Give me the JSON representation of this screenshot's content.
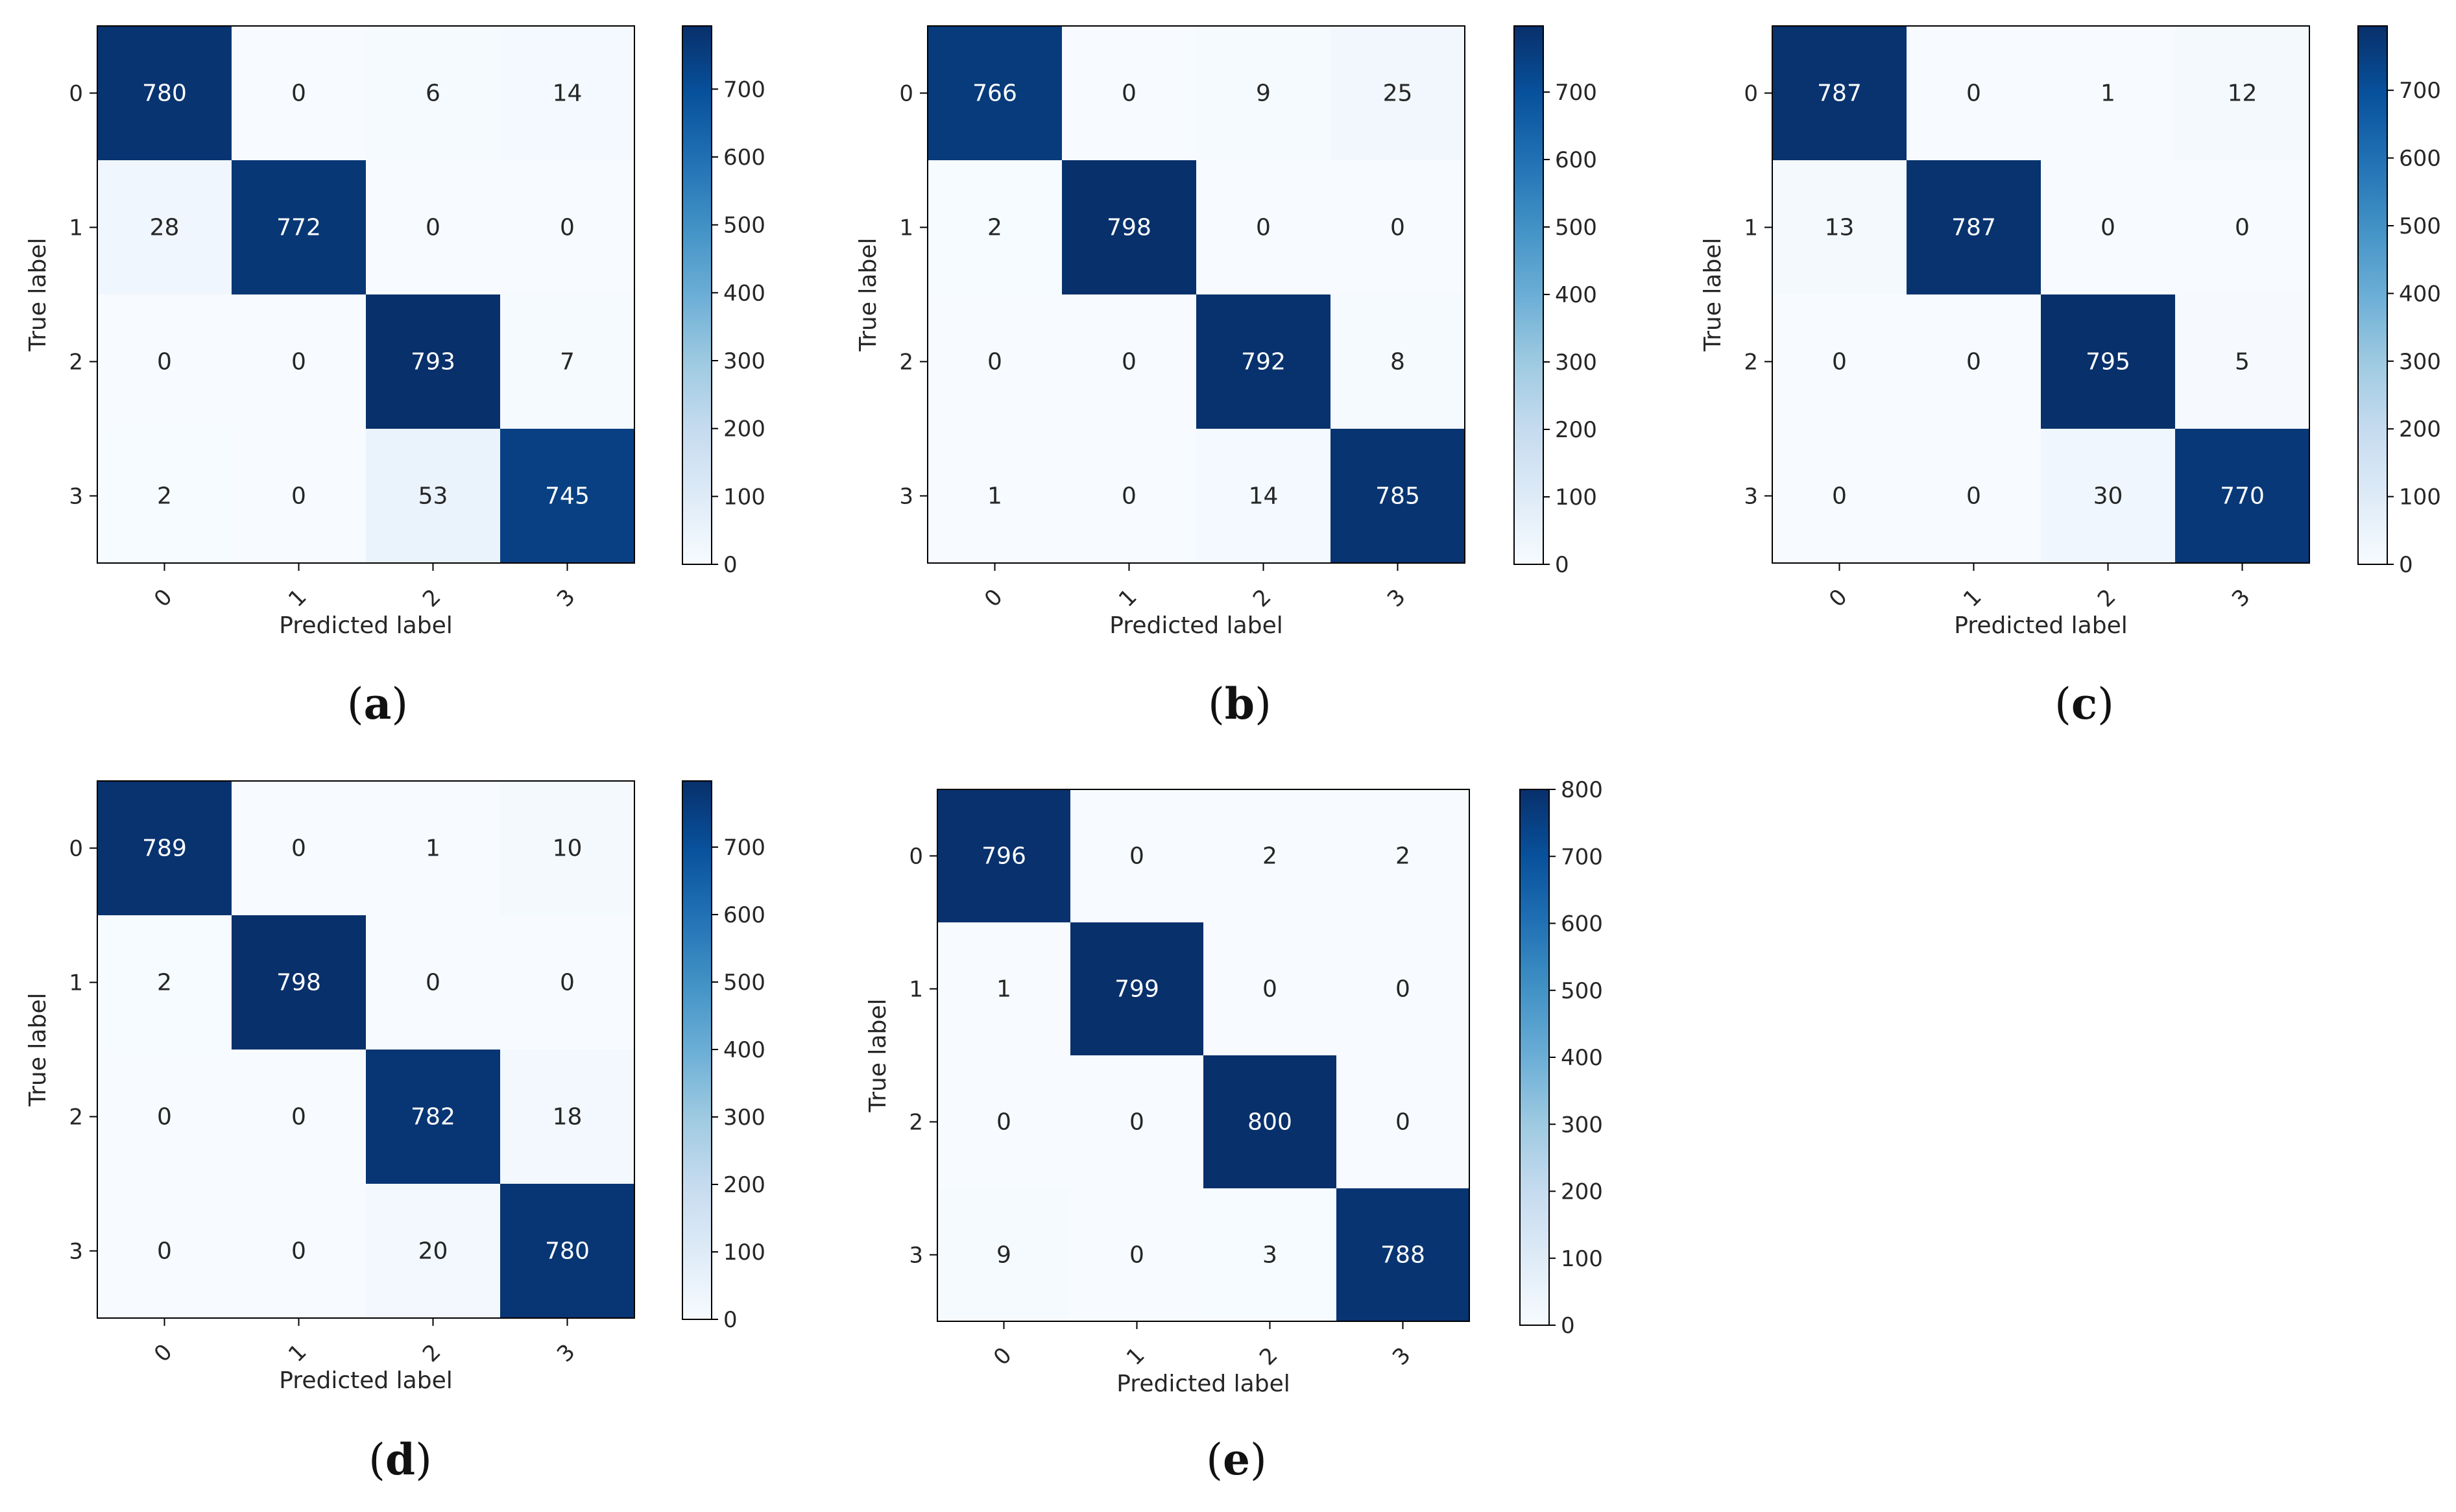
{
  "colors": {
    "cmap": [
      "#f7fbff",
      "#deebf7",
      "#c6dbef",
      "#9ecae1",
      "#6baed6",
      "#4292c6",
      "#2171b5",
      "#08519c",
      "#08306b"
    ],
    "text_light": "#ffffff",
    "text_dark": "#262626"
  },
  "chart_data": [
    {
      "type": "heatmap",
      "caption": "a",
      "title": "",
      "xlabel": "Predicted label",
      "ylabel": "True label",
      "categories": [
        "0",
        "1",
        "2",
        "3"
      ],
      "matrix": [
        [
          780,
          0,
          6,
          14
        ],
        [
          28,
          772,
          0,
          0
        ],
        [
          0,
          0,
          793,
          7
        ],
        [
          2,
          0,
          53,
          745
        ]
      ],
      "colorbar": {
        "vmin": 0,
        "vmax": 793,
        "ticks": [
          "0",
          "100",
          "200",
          "300",
          "400",
          "500",
          "600",
          "700"
        ]
      }
    },
    {
      "type": "heatmap",
      "caption": "b",
      "title": "",
      "xlabel": "Predicted label",
      "ylabel": "True label",
      "categories": [
        "0",
        "1",
        "2",
        "3"
      ],
      "matrix": [
        [
          766,
          0,
          9,
          25
        ],
        [
          2,
          798,
          0,
          0
        ],
        [
          0,
          0,
          792,
          8
        ],
        [
          1,
          0,
          14,
          785
        ]
      ],
      "colorbar": {
        "vmin": 0,
        "vmax": 798,
        "ticks": [
          "0",
          "100",
          "200",
          "300",
          "400",
          "500",
          "600",
          "700"
        ]
      }
    },
    {
      "type": "heatmap",
      "caption": "c",
      "title": "",
      "xlabel": "Predicted label",
      "ylabel": "True label",
      "categories": [
        "0",
        "1",
        "2",
        "3"
      ],
      "matrix": [
        [
          787,
          0,
          1,
          12
        ],
        [
          13,
          787,
          0,
          0
        ],
        [
          0,
          0,
          795,
          5
        ],
        [
          0,
          0,
          30,
          770
        ]
      ],
      "colorbar": {
        "vmin": 0,
        "vmax": 795,
        "ticks": [
          "0",
          "100",
          "200",
          "300",
          "400",
          "500",
          "600",
          "700"
        ]
      }
    },
    {
      "type": "heatmap",
      "caption": "d",
      "title": "",
      "xlabel": "Predicted label",
      "ylabel": "True label",
      "categories": [
        "0",
        "1",
        "2",
        "3"
      ],
      "matrix": [
        [
          789,
          0,
          1,
          10
        ],
        [
          2,
          798,
          0,
          0
        ],
        [
          0,
          0,
          782,
          18
        ],
        [
          0,
          0,
          20,
          780
        ]
      ],
      "colorbar": {
        "vmin": 0,
        "vmax": 798,
        "ticks": [
          "0",
          "100",
          "200",
          "300",
          "400",
          "500",
          "600",
          "700"
        ]
      }
    },
    {
      "type": "heatmap",
      "caption": "e",
      "title": "",
      "xlabel": "Predicted label",
      "ylabel": "True label",
      "categories": [
        "0",
        "1",
        "2",
        "3"
      ],
      "matrix": [
        [
          796,
          0,
          2,
          2
        ],
        [
          1,
          799,
          0,
          0
        ],
        [
          0,
          0,
          800,
          0
        ],
        [
          9,
          0,
          3,
          788
        ]
      ],
      "colorbar": {
        "vmin": 0,
        "vmax": 800,
        "ticks": [
          "0",
          "100",
          "200",
          "300",
          "400",
          "500",
          "600",
          "700",
          "800"
        ]
      }
    }
  ]
}
